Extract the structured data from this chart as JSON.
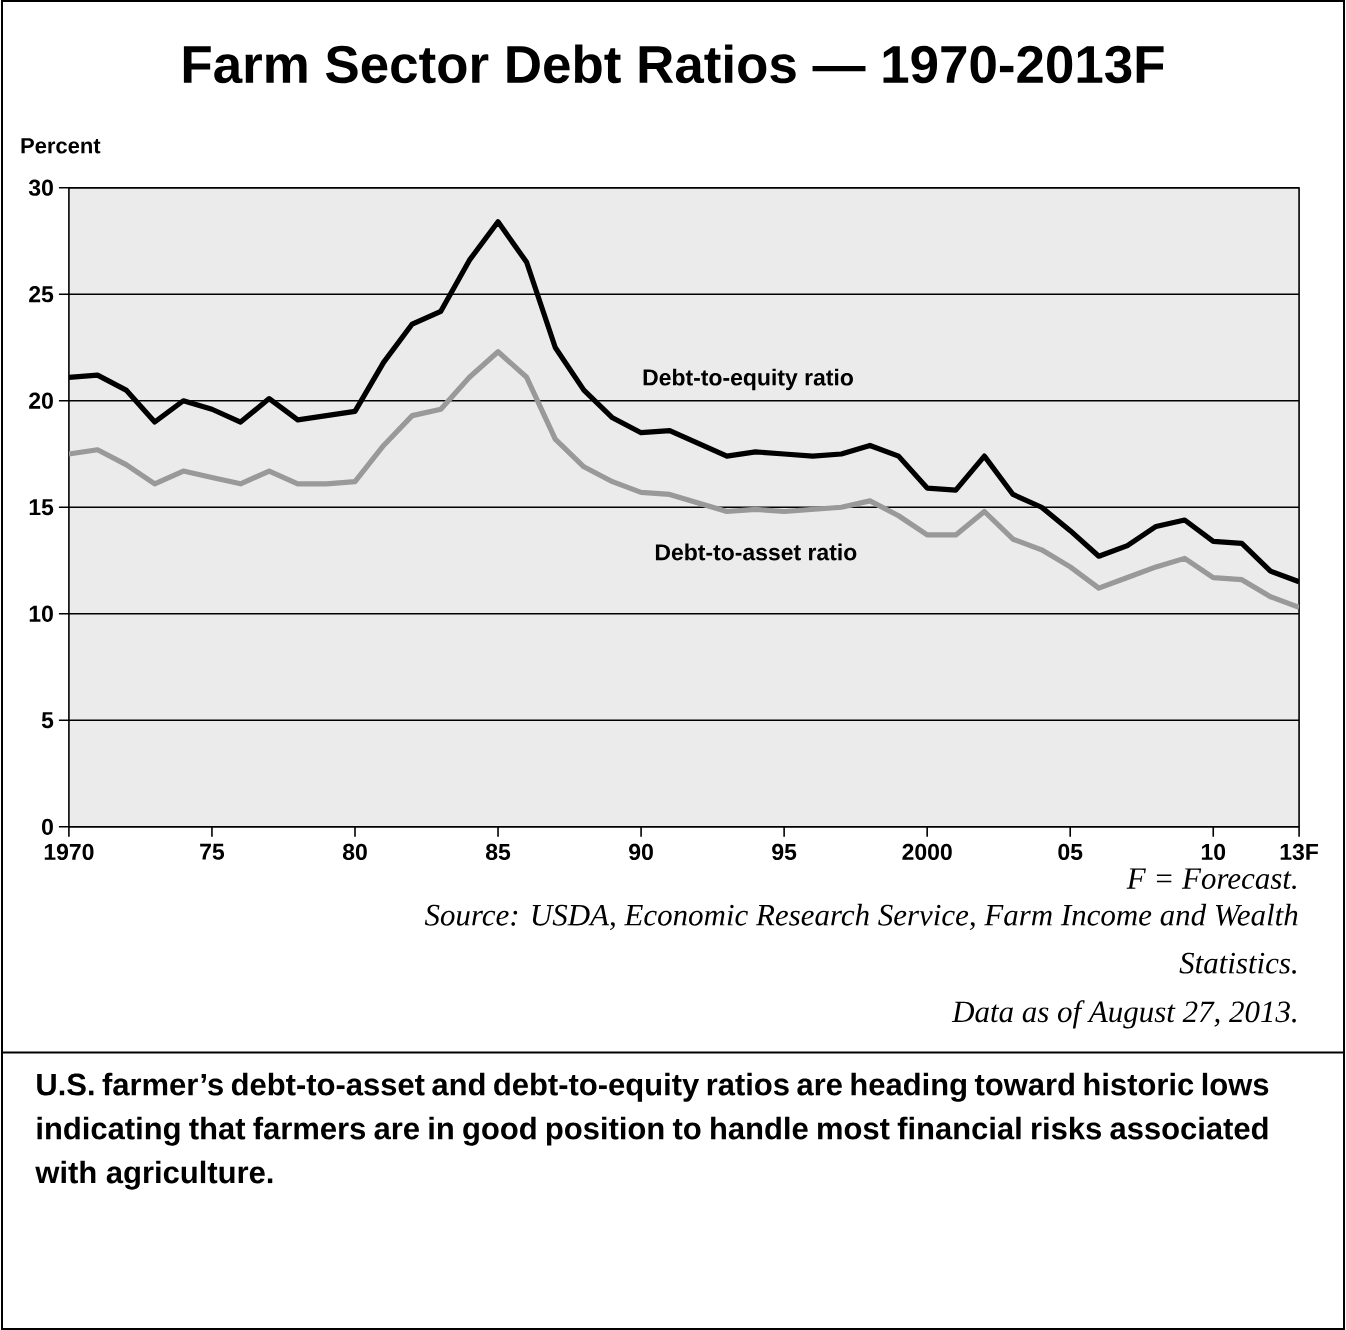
{
  "chart_data": {
    "type": "line",
    "title": "Farm Sector Debt Ratios — 1970-2013F",
    "ylabel": "Percent",
    "categories": [
      "1970",
      null,
      null,
      null,
      null,
      "75",
      null,
      null,
      null,
      null,
      "80",
      null,
      null,
      null,
      null,
      "85",
      null,
      null,
      null,
      null,
      "90",
      null,
      null,
      null,
      null,
      "95",
      null,
      null,
      null,
      null,
      "2000",
      null,
      null,
      null,
      null,
      "05",
      null,
      null,
      null,
      null,
      "10",
      null,
      null,
      "13F"
    ],
    "series": [
      {
        "name": "Debt-to-equity ratio",
        "color": "#000000",
        "values": [
          21.1,
          21.2,
          20.5,
          19.0,
          20.0,
          19.6,
          19.0,
          20.1,
          19.1,
          19.3,
          19.5,
          21.8,
          23.6,
          24.2,
          26.6,
          28.4,
          26.5,
          22.5,
          20.5,
          19.2,
          18.5,
          18.6,
          18.0,
          17.4,
          17.6,
          17.5,
          17.4,
          17.5,
          17.9,
          17.4,
          15.9,
          15.8,
          17.4,
          15.6,
          15.0,
          13.9,
          12.7,
          13.2,
          14.1,
          14.4,
          13.4,
          13.3,
          12.0,
          11.5
        ]
      },
      {
        "name": "Debt-to-asset ratio",
        "color": "#999999",
        "values": [
          17.5,
          17.7,
          17.0,
          16.1,
          16.7,
          16.4,
          16.1,
          16.7,
          16.1,
          16.1,
          16.2,
          17.9,
          19.3,
          19.6,
          21.1,
          22.3,
          21.1,
          18.2,
          16.9,
          16.2,
          15.7,
          15.6,
          15.2,
          14.8,
          14.9,
          14.8,
          14.9,
          15.0,
          15.3,
          14.6,
          13.7,
          13.7,
          14.8,
          13.5,
          13.0,
          12.2,
          11.2,
          11.7,
          12.2,
          12.6,
          11.7,
          11.6,
          10.8,
          10.3
        ]
      }
    ],
    "ylim": [
      0,
      30
    ],
    "yticks": [
      0,
      5,
      10,
      15,
      20,
      25,
      30
    ],
    "grid": "y",
    "annotations": [
      "F = Forecast.",
      "Source: USDA, Economic Research Service, Farm Income and Wealth Statistics.",
      "Data as of August 27, 2013.",
      "U.S. farmer’s debt-to-asset and debt-to-equity ratios are heading toward historic lows indicating that farmers are in good position to handle most financial risks associated with agriculture."
    ]
  }
}
